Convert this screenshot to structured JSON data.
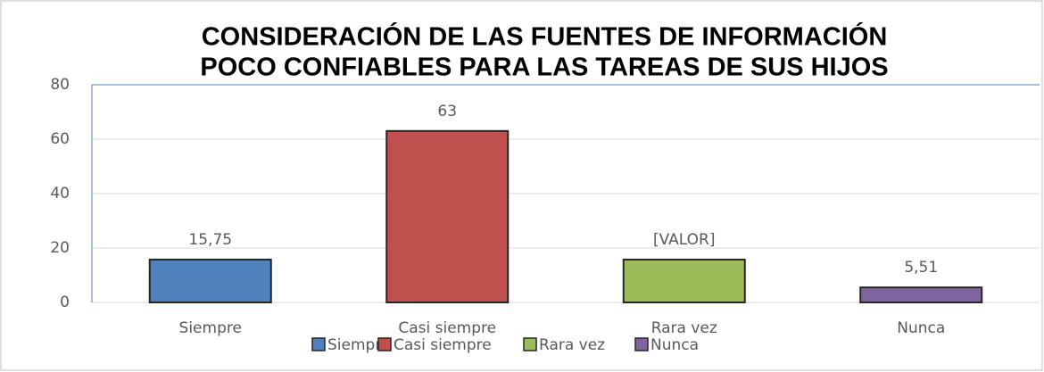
{
  "chart_data": {
    "type": "bar",
    "title": [
      "CONSIDERACIÓN DE LAS FUENTES DE INFORMACIÓN",
      "POCO CONFIABLES PARA LAS TAREAS DE SUS HIJOS"
    ],
    "categories": [
      "Siempre",
      "Casi siempre",
      "Rara vez",
      "Nunca"
    ],
    "values": [
      15.75,
      63,
      15.75,
      5.51
    ],
    "value_labels": [
      "15,75",
      "63",
      "[VALOR]",
      "5,51"
    ],
    "colors": [
      "#4f81bd",
      "#c0504d",
      "#9bbb59",
      "#8064a2"
    ],
    "ylim": [
      0,
      80
    ],
    "yticks": [
      0,
      20,
      40,
      60,
      80
    ],
    "grid": true,
    "legend": "bottom"
  }
}
